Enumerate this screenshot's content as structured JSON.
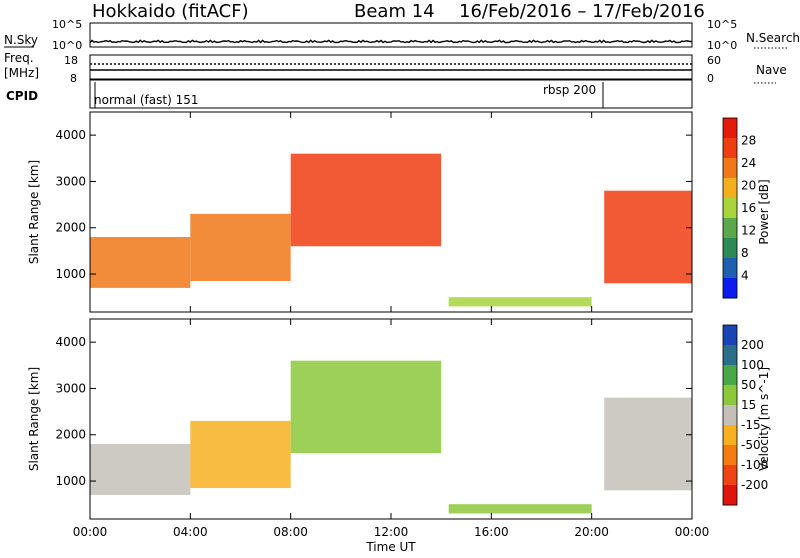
{
  "header": {
    "station": "Hokkaido (fitACF)",
    "beam": "Beam 14",
    "date_range": "16/Feb/2016 – 17/Feb/2016"
  },
  "nsky_panel": {
    "left_label": "N.Sky",
    "right_label": "N.Search",
    "left_ticks": [
      "10^5",
      "10^0"
    ],
    "right_ticks": [
      "10^5",
      "10^0"
    ]
  },
  "freq_panel": {
    "left_label_line1": "Freq.",
    "left_label_line2": "[MHz]",
    "right_label": "Nave",
    "left_ticks": [
      "18",
      "8"
    ],
    "right_ticks": [
      "60",
      "0"
    ]
  },
  "cpid_panel": {
    "label": "CPID",
    "mode_left": "normal (fast) 151",
    "mode_right": "rbsp 200"
  },
  "x_axis": {
    "title": "Time UT",
    "ticks": [
      "00:00",
      "04:00",
      "08:00",
      "12:00",
      "16:00",
      "20:00",
      "00:00"
    ]
  },
  "colors": {
    "power_scale": [
      "#0a1cf0",
      "#1f5fb0",
      "#2e8a55",
      "#5aa84a",
      "#a8d43c",
      "#f2b01e",
      "#f07818",
      "#ee3d10",
      "#e41a0a"
    ],
    "velocity_scale": [
      "#e0140c",
      "#f04414",
      "#f47c10",
      "#f6b020",
      "#c4c0b8",
      "#8cc83c",
      "#48a848",
      "#2a6e8a",
      "#1a44b4"
    ]
  },
  "chart_data": [
    {
      "type": "heatmap",
      "title": "",
      "xlabel": "Time UT",
      "ylabel": "Slant Range [km]",
      "xlim": [
        "00:00",
        "24:00"
      ],
      "ylim": [
        180,
        4500
      ],
      "yticks": [
        1000,
        2000,
        3000,
        4000
      ],
      "colorbar": {
        "label": "Power [dB]",
        "range": [
          0,
          32
        ],
        "ticks": [
          "28",
          "24",
          "20",
          "16",
          "12",
          "8",
          "4"
        ]
      },
      "echo_regions": [
        {
          "t_start": 0.0,
          "t_end": 4.0,
          "range_low": 700,
          "range_high": 1800,
          "value": 24
        },
        {
          "t_start": 4.0,
          "t_end": 8.0,
          "range_low": 850,
          "range_high": 2300,
          "value": 24
        },
        {
          "t_start": 8.0,
          "t_end": 14.0,
          "range_low": 1600,
          "range_high": 3600,
          "value": 26
        },
        {
          "t_start": 14.3,
          "t_end": 20.0,
          "range_low": 300,
          "range_high": 500,
          "value": 16
        },
        {
          "t_start": 20.5,
          "t_end": 24.0,
          "range_low": 800,
          "range_high": 2800,
          "value": 26
        }
      ]
    },
    {
      "type": "heatmap",
      "title": "",
      "xlabel": "Time UT",
      "ylabel": "Slant Range [km]",
      "xlim": [
        "00:00",
        "24:00"
      ],
      "ylim": [
        180,
        4500
      ],
      "yticks": [
        1000,
        2000,
        3000,
        4000
      ],
      "colorbar": {
        "label": "Velocity [m s^-1]",
        "range": [
          -250,
          250
        ],
        "ticks": [
          "200",
          "100",
          "50",
          "15",
          "-15",
          "-50",
          "-100",
          "-200"
        ]
      },
      "echo_regions": [
        {
          "t_start": 0.0,
          "t_end": 4.0,
          "range_low": 700,
          "range_high": 1800,
          "value": 0
        },
        {
          "t_start": 4.0,
          "t_end": 8.0,
          "range_low": 850,
          "range_high": 2300,
          "value": -60
        },
        {
          "t_start": 8.0,
          "t_end": 14.0,
          "range_low": 1600,
          "range_high": 3600,
          "value": 40
        },
        {
          "t_start": 14.3,
          "t_end": 20.0,
          "range_low": 300,
          "range_high": 500,
          "value": 50
        },
        {
          "t_start": 20.5,
          "t_end": 24.0,
          "range_low": 800,
          "range_high": 2800,
          "value": 0
        }
      ]
    }
  ]
}
